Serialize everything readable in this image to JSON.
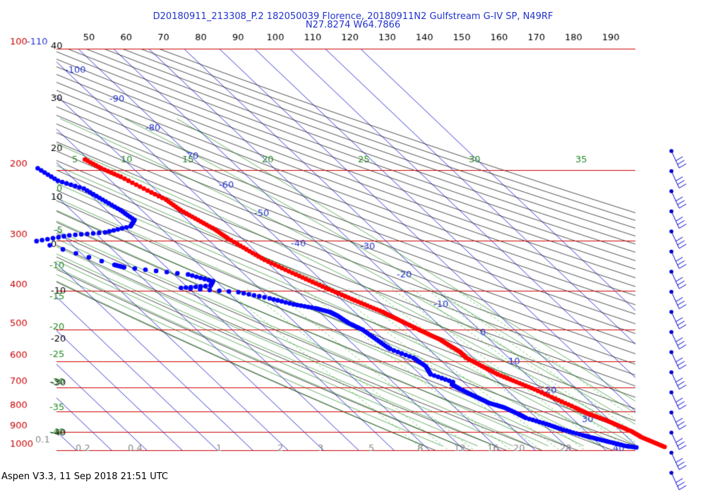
{
  "header": {
    "line1": "D20180911_213308_P.2 182050039 Florence, 20180911N2 Gulfstream G-IV SP, N49RF",
    "line2": "N27.8274 W64.7866"
  },
  "footer": {
    "text": "Aspen V3.3, 11 Sep 2018  21:51 UTC"
  },
  "colors": {
    "isobar": "#cc0000",
    "isotherm": "#0000cc",
    "dry_adiabat": "#000000",
    "moist_adiabat": "#007700",
    "mixing_ratio": "#00aa00",
    "temperature": "#ff0000",
    "dewpoint": "#0000ff",
    "barb": "#0000cc"
  },
  "chart_data": {
    "type": "scatter",
    "title": "",
    "pressure_levels_hpa": [
      "100",
      "200",
      "300",
      "400",
      "500",
      "600",
      "700",
      "800",
      "900",
      "1000"
    ],
    "top_pressure_label": "100",
    "top_temperature_label": "-110",
    "temperature_top_labels_f": [
      "50",
      "60",
      "70",
      "80",
      "90",
      "100",
      "110",
      "120",
      "130",
      "140",
      "150",
      "160",
      "170",
      "180",
      "190"
    ],
    "left_temperature_labels_f": [
      "40",
      "30",
      "20",
      "10",
      "0",
      "-10",
      "-20",
      "-30",
      "-40"
    ],
    "isotherm_labels_c": [
      "-100",
      "-90",
      "-80",
      "-70",
      "-60",
      "-50",
      "-40",
      "-30",
      "-20",
      "-10",
      "0",
      "10",
      "20",
      "30",
      "40"
    ],
    "moist_adiabat_labels_c": [
      "5",
      "10",
      "15",
      "20",
      "25",
      "30",
      "35",
      "0",
      "-5",
      "-10",
      "-15",
      "-20",
      "-25",
      "-30",
      "-35",
      "-40"
    ],
    "mixing_ratio_labels": [
      "0.1",
      "0.2",
      "0.4",
      "1",
      "2",
      "3",
      "5",
      "8",
      "12",
      "16",
      "20",
      "28"
    ],
    "series": [
      {
        "name": "",
        "color": "#ff0000",
        "x_temperature_c": [
          -51,
          -49,
          -46,
          -43,
          -40,
          -39,
          -37,
          -35,
          -34,
          -32,
          -30,
          -27,
          -24,
          -21,
          -18,
          -15,
          -12,
          -10,
          -8,
          -6,
          -4,
          -3,
          -2,
          -2,
          0,
          2,
          5,
          8,
          11,
          14,
          16,
          19,
          21,
          23,
          24,
          26,
          28
        ],
        "y_pressure_hpa": [
          190,
          200,
          210,
          225,
          240,
          255,
          270,
          285,
          300,
          320,
          340,
          360,
          380,
          400,
          420,
          440,
          460,
          480,
          500,
          520,
          540,
          560,
          580,
          600,
          630,
          660,
          690,
          720,
          760,
          800,
          830,
          860,
          890,
          920,
          950,
          980,
          1010
        ]
      },
      {
        "name": "",
        "color": "#0000ff",
        "x_temperature_c": [
          -67,
          -65,
          -60,
          -58,
          -56,
          -55,
          -58,
          -67,
          -78,
          -89,
          -74,
          -72,
          -56,
          -51,
          -53,
          -62,
          -47,
          -40,
          -35,
          -30,
          -27,
          -26,
          -25,
          -23,
          -22,
          -21,
          -17,
          -16,
          -17,
          -13,
          -14,
          -13,
          -11,
          -9,
          -6,
          -4,
          -3,
          1,
          4,
          8,
          11,
          14,
          17,
          20
        ],
        "y_pressure_hpa": [
          200,
          215,
          225,
          240,
          255,
          270,
          280,
          290,
          295,
          305,
          350,
          355,
          370,
          385,
          395,
          400,
          410,
          425,
          440,
          450,
          460,
          470,
          490,
          510,
          540,
          570,
          600,
          630,
          660,
          690,
          700,
          720,
          750,
          780,
          800,
          830,
          850,
          880,
          910,
          940,
          960,
          980,
          1000,
          1010
        ]
      }
    ],
    "wind_barbs_count": 17
  }
}
